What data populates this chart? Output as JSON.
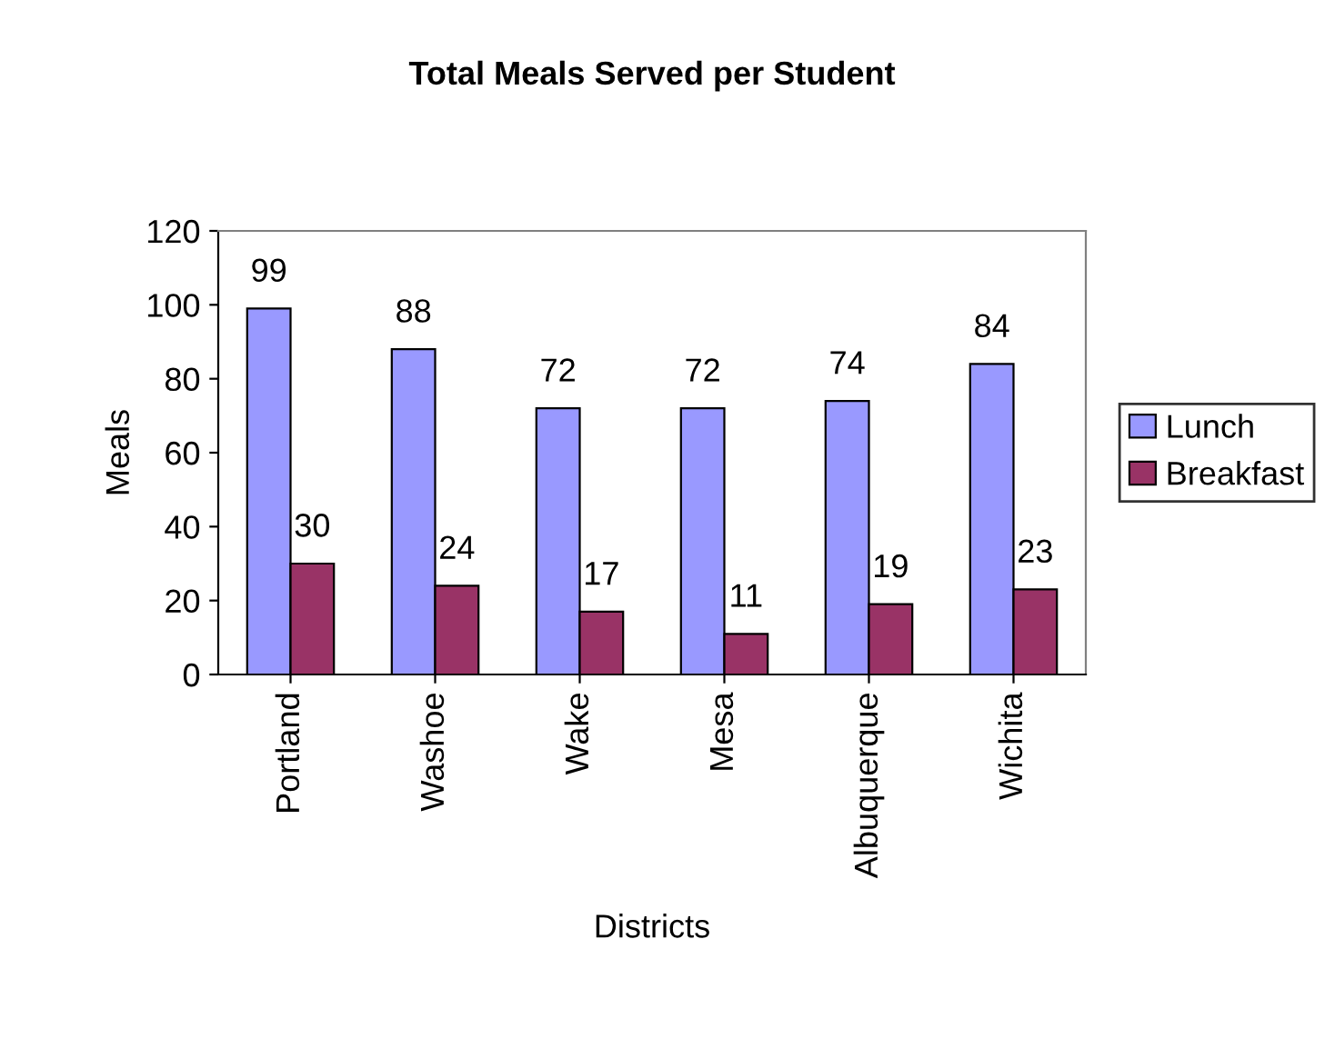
{
  "chart_data": {
    "type": "bar",
    "title": "Total Meals Served per Student",
    "xlabel": "Districts",
    "ylabel": "Meals",
    "categories": [
      "Portland",
      "Washoe",
      "Wake",
      "Mesa",
      "Albuquerque",
      "Wichita"
    ],
    "series": [
      {
        "name": "Lunch",
        "color": "#9999ff",
        "values": [
          99,
          88,
          72,
          72,
          74,
          84
        ]
      },
      {
        "name": "Breakfast",
        "color": "#993366",
        "values": [
          30,
          24,
          17,
          11,
          19,
          23
        ]
      }
    ],
    "ylim": [
      0,
      120
    ],
    "yticks": [
      0,
      20,
      40,
      60,
      80,
      100,
      120
    ],
    "data_labels": true,
    "grid": false,
    "legend": "right"
  }
}
